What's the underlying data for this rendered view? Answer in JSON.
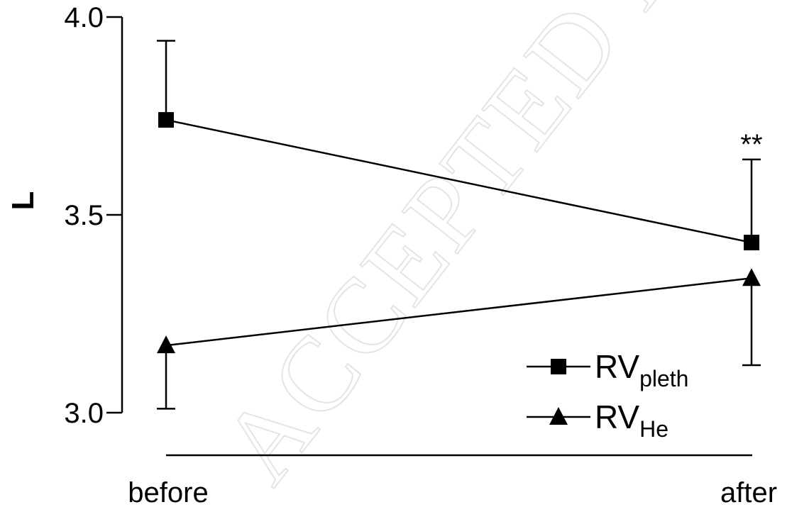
{
  "chart_data": {
    "type": "line",
    "categories": [
      "before",
      "after"
    ],
    "ylabel": "L",
    "ylim": [
      3.0,
      4.0
    ],
    "yticks": [
      "3.0",
      "3.5",
      "4.0"
    ],
    "series": [
      {
        "name": "RV",
        "name_sub": "pleth",
        "marker": "square",
        "values": [
          3.74,
          3.43
        ],
        "error": [
          0.2,
          0.21
        ],
        "error_direction": "up"
      },
      {
        "name": "RV",
        "name_sub": "He",
        "marker": "triangle",
        "values": [
          3.17,
          3.34
        ],
        "error": [
          0.16,
          0.22
        ],
        "error_direction": "down"
      }
    ],
    "annotations": [
      {
        "text": "**",
        "category": "after",
        "series_index": 0
      }
    ],
    "legend": "bottom-right"
  },
  "watermark": "ACCEPTED MANUSCRIPT"
}
